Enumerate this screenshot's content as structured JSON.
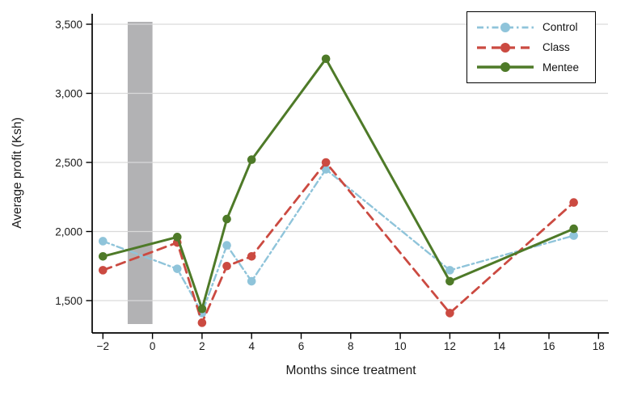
{
  "chart_data": {
    "type": "line",
    "title": "",
    "xlabel": "Months since treatment",
    "ylabel": "Average profit (Ksh)",
    "x": [
      -2,
      1,
      2,
      3,
      4,
      7,
      12,
      17
    ],
    "series": [
      {
        "name": "Control",
        "color": "#8fc4da",
        "line_style": "dash-dot",
        "line_width": 2.4,
        "values": [
          1930,
          1730,
          1410,
          1900,
          1640,
          2450,
          1720,
          1970
        ]
      },
      {
        "name": "Class",
        "color": "#cb4a41",
        "line_style": "dashed",
        "line_width": 2.8,
        "values": [
          1720,
          1920,
          1340,
          1750,
          1820,
          2500,
          1410,
          2210
        ]
      },
      {
        "name": "Mentee",
        "color": "#4e7a28",
        "line_style": "solid",
        "line_width": 3,
        "values": [
          1820,
          1960,
          1440,
          2090,
          2520,
          3250,
          1640,
          2020
        ]
      }
    ],
    "x_ticks": [
      -2,
      0,
      2,
      4,
      6,
      8,
      10,
      12,
      14,
      16,
      18
    ],
    "x_tick_labels": [
      "−2",
      "0",
      "2",
      "4",
      "6",
      "8",
      "10",
      "12",
      "14",
      "16",
      "18"
    ],
    "y_tick_values": [
      1500,
      2000,
      2500,
      3000,
      3500
    ],
    "y_tick_labels": [
      "1,500",
      "2,000",
      "2,500",
      "3,000",
      "3,500"
    ],
    "xlim": [
      -2.45,
      18.45
    ],
    "ylim": [
      1266,
      3576
    ],
    "grid": "horizontal",
    "gridline_color": "#d9d9d9",
    "axis_color": "#000000",
    "shaded_region": {
      "x_start": -1,
      "x_end": 0,
      "color": "#b2b2b4"
    },
    "legend": {
      "position": "top-right",
      "entries": [
        "Control",
        "Class",
        "Mentee"
      ]
    },
    "marker": "circle"
  }
}
